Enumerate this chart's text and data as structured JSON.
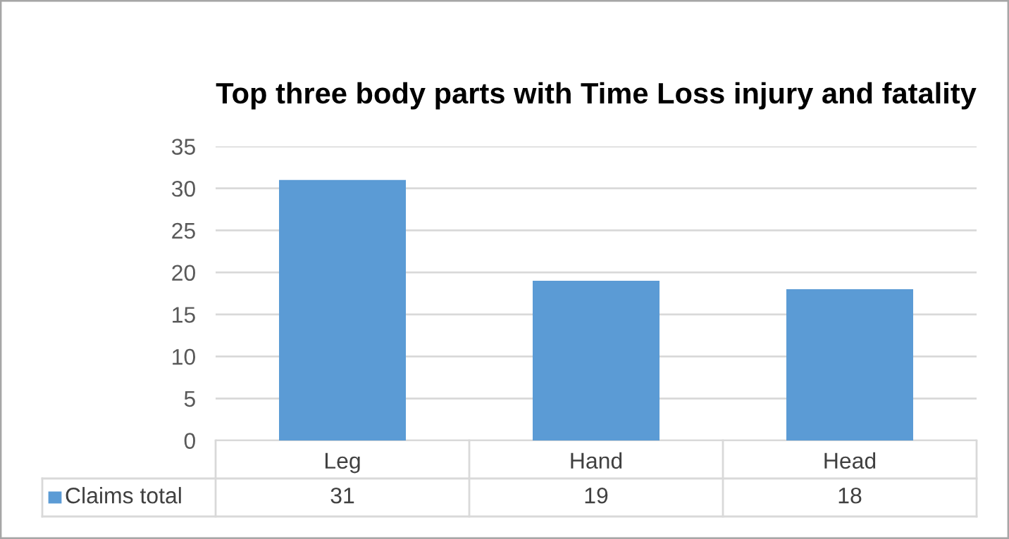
{
  "chart_data": {
    "type": "bar",
    "title": "Top three body parts with Time Loss injury and fatality",
    "categories": [
      "Leg",
      "Hand",
      "Head"
    ],
    "series": [
      {
        "name": "Claims total",
        "color": "#5b9bd5",
        "values": [
          31,
          19,
          18
        ]
      }
    ],
    "ylim": [
      0,
      35
    ],
    "yticks": [
      0,
      5,
      10,
      15,
      20,
      25,
      30,
      35
    ],
    "grid": "y",
    "legend": "bottom",
    "data_labels": true
  }
}
